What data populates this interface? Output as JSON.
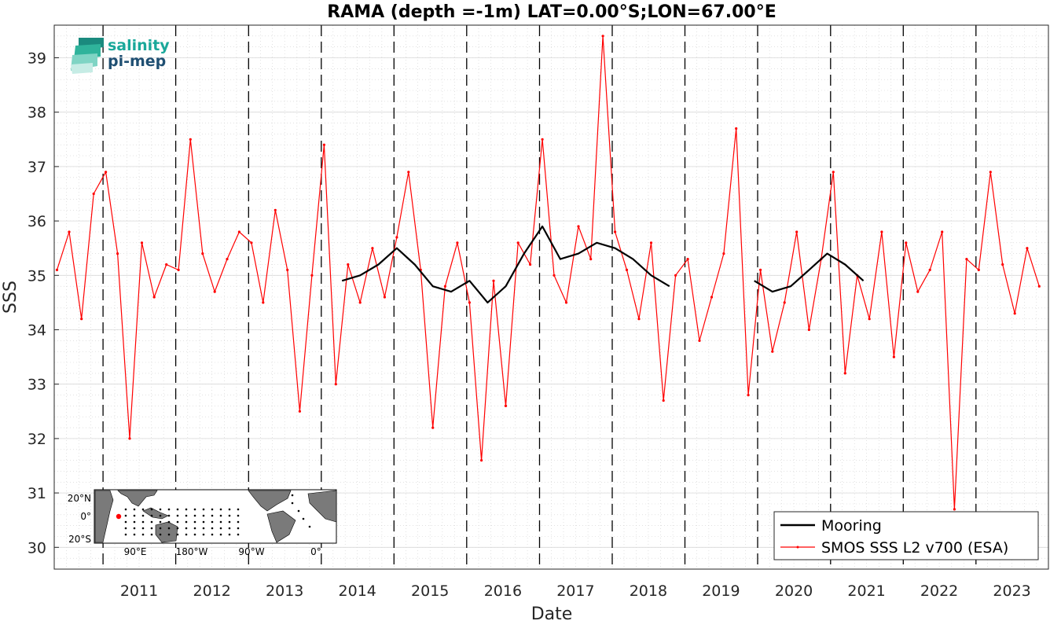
{
  "chart_data": {
    "type": "line",
    "title": "RAMA (depth =-1m) LAT=0.00°S;LON=67.00°E",
    "xlabel": "Date",
    "ylabel": "SSS",
    "xlim": [
      "2010-05-01",
      "2023-12-31"
    ],
    "ylim": [
      29.6,
      39.6
    ],
    "x_ticks": [
      "2011",
      "2012",
      "2013",
      "2014",
      "2015",
      "2016",
      "2017",
      "2018",
      "2019",
      "2020",
      "2021",
      "2022",
      "2023"
    ],
    "y_ticks": [
      30,
      31,
      32,
      33,
      34,
      35,
      36,
      37,
      38,
      39
    ],
    "grid": "minor dotted",
    "vertical_year_lines": "dashed",
    "legend_position": "bottom-right",
    "series": [
      {
        "name": "Mooring",
        "color": "#000000",
        "segments": [
          {
            "x": [
              "2014-04",
              "2014-07",
              "2014-10",
              "2015-01",
              "2015-04",
              "2015-07",
              "2015-10",
              "2016-01",
              "2016-04",
              "2016-07",
              "2016-10",
              "2017-01",
              "2017-04",
              "2017-07",
              "2017-10",
              "2018-01",
              "2018-04",
              "2018-07",
              "2018-10"
            ],
            "y": [
              34.9,
              35.0,
              35.2,
              35.5,
              35.2,
              34.8,
              34.7,
              34.9,
              34.5,
              34.8,
              35.4,
              35.9,
              35.3,
              35.4,
              35.6,
              35.5,
              35.3,
              35.0,
              34.8
            ]
          },
          {
            "x": [
              "2019-12",
              "2020-03",
              "2020-06",
              "2020-09",
              "2020-12",
              "2021-03",
              "2021-06"
            ],
            "y": [
              34.9,
              34.7,
              34.8,
              35.1,
              35.4,
              35.2,
              34.9
            ]
          }
        ]
      },
      {
        "name": "SMOS SSS L2 v700 (ESA)",
        "color": "#ff0000",
        "x": [
          "2010-05",
          "2010-07",
          "2010-09",
          "2010-11",
          "2011-01",
          "2011-03",
          "2011-05",
          "2011-07",
          "2011-09",
          "2011-11",
          "2012-01",
          "2012-03",
          "2012-05",
          "2012-07",
          "2012-09",
          "2012-11",
          "2013-01",
          "2013-03",
          "2013-05",
          "2013-07",
          "2013-09",
          "2013-11",
          "2014-01",
          "2014-03",
          "2014-05",
          "2014-07",
          "2014-09",
          "2014-11",
          "2015-01",
          "2015-03",
          "2015-05",
          "2015-07",
          "2015-09",
          "2015-11",
          "2016-01",
          "2016-03",
          "2016-05",
          "2016-07",
          "2016-09",
          "2016-11",
          "2017-01",
          "2017-03",
          "2017-05",
          "2017-07",
          "2017-09",
          "2017-11",
          "2018-01",
          "2018-03",
          "2018-05",
          "2018-07",
          "2018-09",
          "2018-11",
          "2019-01",
          "2019-03",
          "2019-05",
          "2019-07",
          "2019-09",
          "2019-11",
          "2020-01",
          "2020-03",
          "2020-05",
          "2020-07",
          "2020-09",
          "2020-11",
          "2021-01",
          "2021-03",
          "2021-05",
          "2021-07",
          "2021-09",
          "2021-11",
          "2022-01",
          "2022-03",
          "2022-05",
          "2022-07",
          "2022-09",
          "2022-11",
          "2023-01",
          "2023-03",
          "2023-05",
          "2023-07",
          "2023-09",
          "2023-11"
        ],
        "y": [
          35.1,
          35.8,
          34.2,
          36.5,
          36.9,
          35.4,
          32.0,
          35.6,
          34.6,
          35.2,
          35.1,
          37.5,
          35.4,
          34.7,
          35.3,
          35.8,
          35.6,
          34.5,
          36.2,
          35.1,
          32.5,
          35.0,
          37.4,
          33.0,
          35.2,
          34.5,
          35.5,
          34.6,
          35.7,
          36.9,
          35.1,
          32.2,
          34.8,
          35.6,
          34.5,
          31.6,
          34.9,
          32.6,
          35.6,
          35.2,
          37.5,
          35.0,
          34.5,
          35.9,
          35.3,
          39.4,
          35.8,
          35.1,
          34.2,
          35.6,
          32.7,
          35.0,
          35.3,
          33.8,
          34.6,
          35.4,
          37.7,
          32.8,
          35.1,
          33.6,
          34.5,
          35.8,
          34.0,
          35.3,
          36.9,
          33.2,
          35.0,
          34.2,
          35.8,
          33.5,
          35.6,
          34.7,
          35.1,
          35.8,
          30.7,
          35.3,
          35.1,
          36.9,
          35.2,
          34.3,
          35.5,
          34.8
        ]
      }
    ],
    "logo": {
      "line1": "salinity",
      "line2": "pi-mep"
    },
    "inset_map": {
      "lat_labels": [
        "20°N",
        "0°",
        "20°S"
      ],
      "lon_labels": [
        "90°E",
        "180°W",
        "90°W",
        "0°"
      ],
      "marker_color": "#ff0000"
    }
  }
}
